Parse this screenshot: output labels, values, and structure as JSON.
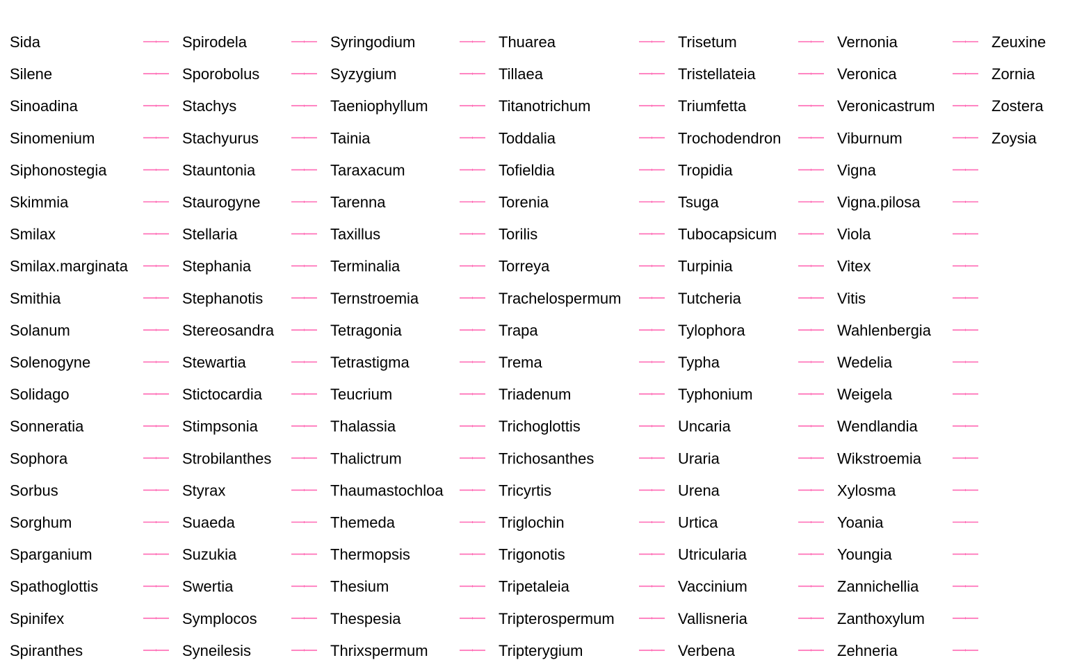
{
  "chart_data": {
    "type": "line",
    "legend_placement": "full-panel",
    "line_color": "#ff69b4",
    "text_color": "#000000",
    "columns": [
      [
        "Sida",
        "Silene",
        "Sinoadina",
        "Sinomenium",
        "Siphonostegia",
        "Skimmia",
        "Smilax",
        "Smilax.marginata",
        "Smithia",
        "Solanum",
        "Solenogyne",
        "Solidago",
        "Sonneratia",
        "Sophora",
        "Sorbus",
        "Sorghum",
        "Sparganium",
        "Spathoglottis",
        "Spinifex",
        "Spiranthes"
      ],
      [
        "Spirodela",
        "Sporobolus",
        "Stachys",
        "Stachyurus",
        "Stauntonia",
        "Staurogyne",
        "Stellaria",
        "Stephania",
        "Stephanotis",
        "Stereosandra",
        "Stewartia",
        "Stictocardia",
        "Stimpsonia",
        "Strobilanthes",
        "Styrax",
        "Suaeda",
        "Suzukia",
        "Swertia",
        "Symplocos",
        "Syneilesis"
      ],
      [
        "Syringodium",
        "Syzygium",
        "Taeniophyllum",
        "Tainia",
        "Taraxacum",
        "Tarenna",
        "Taxillus",
        "Terminalia",
        "Ternstroemia",
        "Tetragonia",
        "Tetrastigma",
        "Teucrium",
        "Thalassia",
        "Thalictrum",
        "Thaumastochloa",
        "Themeda",
        "Thermopsis",
        "Thesium",
        "Thespesia",
        "Thrixspermum"
      ],
      [
        "Thuarea",
        "Tillaea",
        "Titanotrichum",
        "Toddalia",
        "Tofieldia",
        "Torenia",
        "Torilis",
        "Torreya",
        "Trachelospermum",
        "Trapa",
        "Trema",
        "Triadenum",
        "Trichoglottis",
        "Trichosanthes",
        "Tricyrtis",
        "Triglochin",
        "Trigonotis",
        "Tripetaleia",
        "Tripterospermum",
        "Tripterygium"
      ],
      [
        "Trisetum",
        "Tristellateia",
        "Triumfetta",
        "Trochodendron",
        "Tropidia",
        "Tsuga",
        "Tubocapsicum",
        "Turpinia",
        "Tutcheria",
        "Tylophora",
        "Typha",
        "Typhonium",
        "Uncaria",
        "Uraria",
        "Urena",
        "Urtica",
        "Utricularia",
        "Vaccinium",
        "Vallisneria",
        "Verbena"
      ],
      [
        "Vernonia",
        "Veronica",
        "Veronicastrum",
        "Viburnum",
        "Vigna",
        "Vigna.pilosa",
        "Viola",
        "Vitex",
        "Vitis",
        "Wahlenbergia",
        "Wedelia",
        "Weigela",
        "Wendlandia",
        "Wikstroemia",
        "Xylosma",
        "Yoania",
        "Youngia",
        "Zannichellia",
        "Zanthoxylum",
        "Zehneria"
      ],
      [
        "Zeuxine",
        "Zornia",
        "Zostera",
        "Zoysia"
      ]
    ]
  }
}
